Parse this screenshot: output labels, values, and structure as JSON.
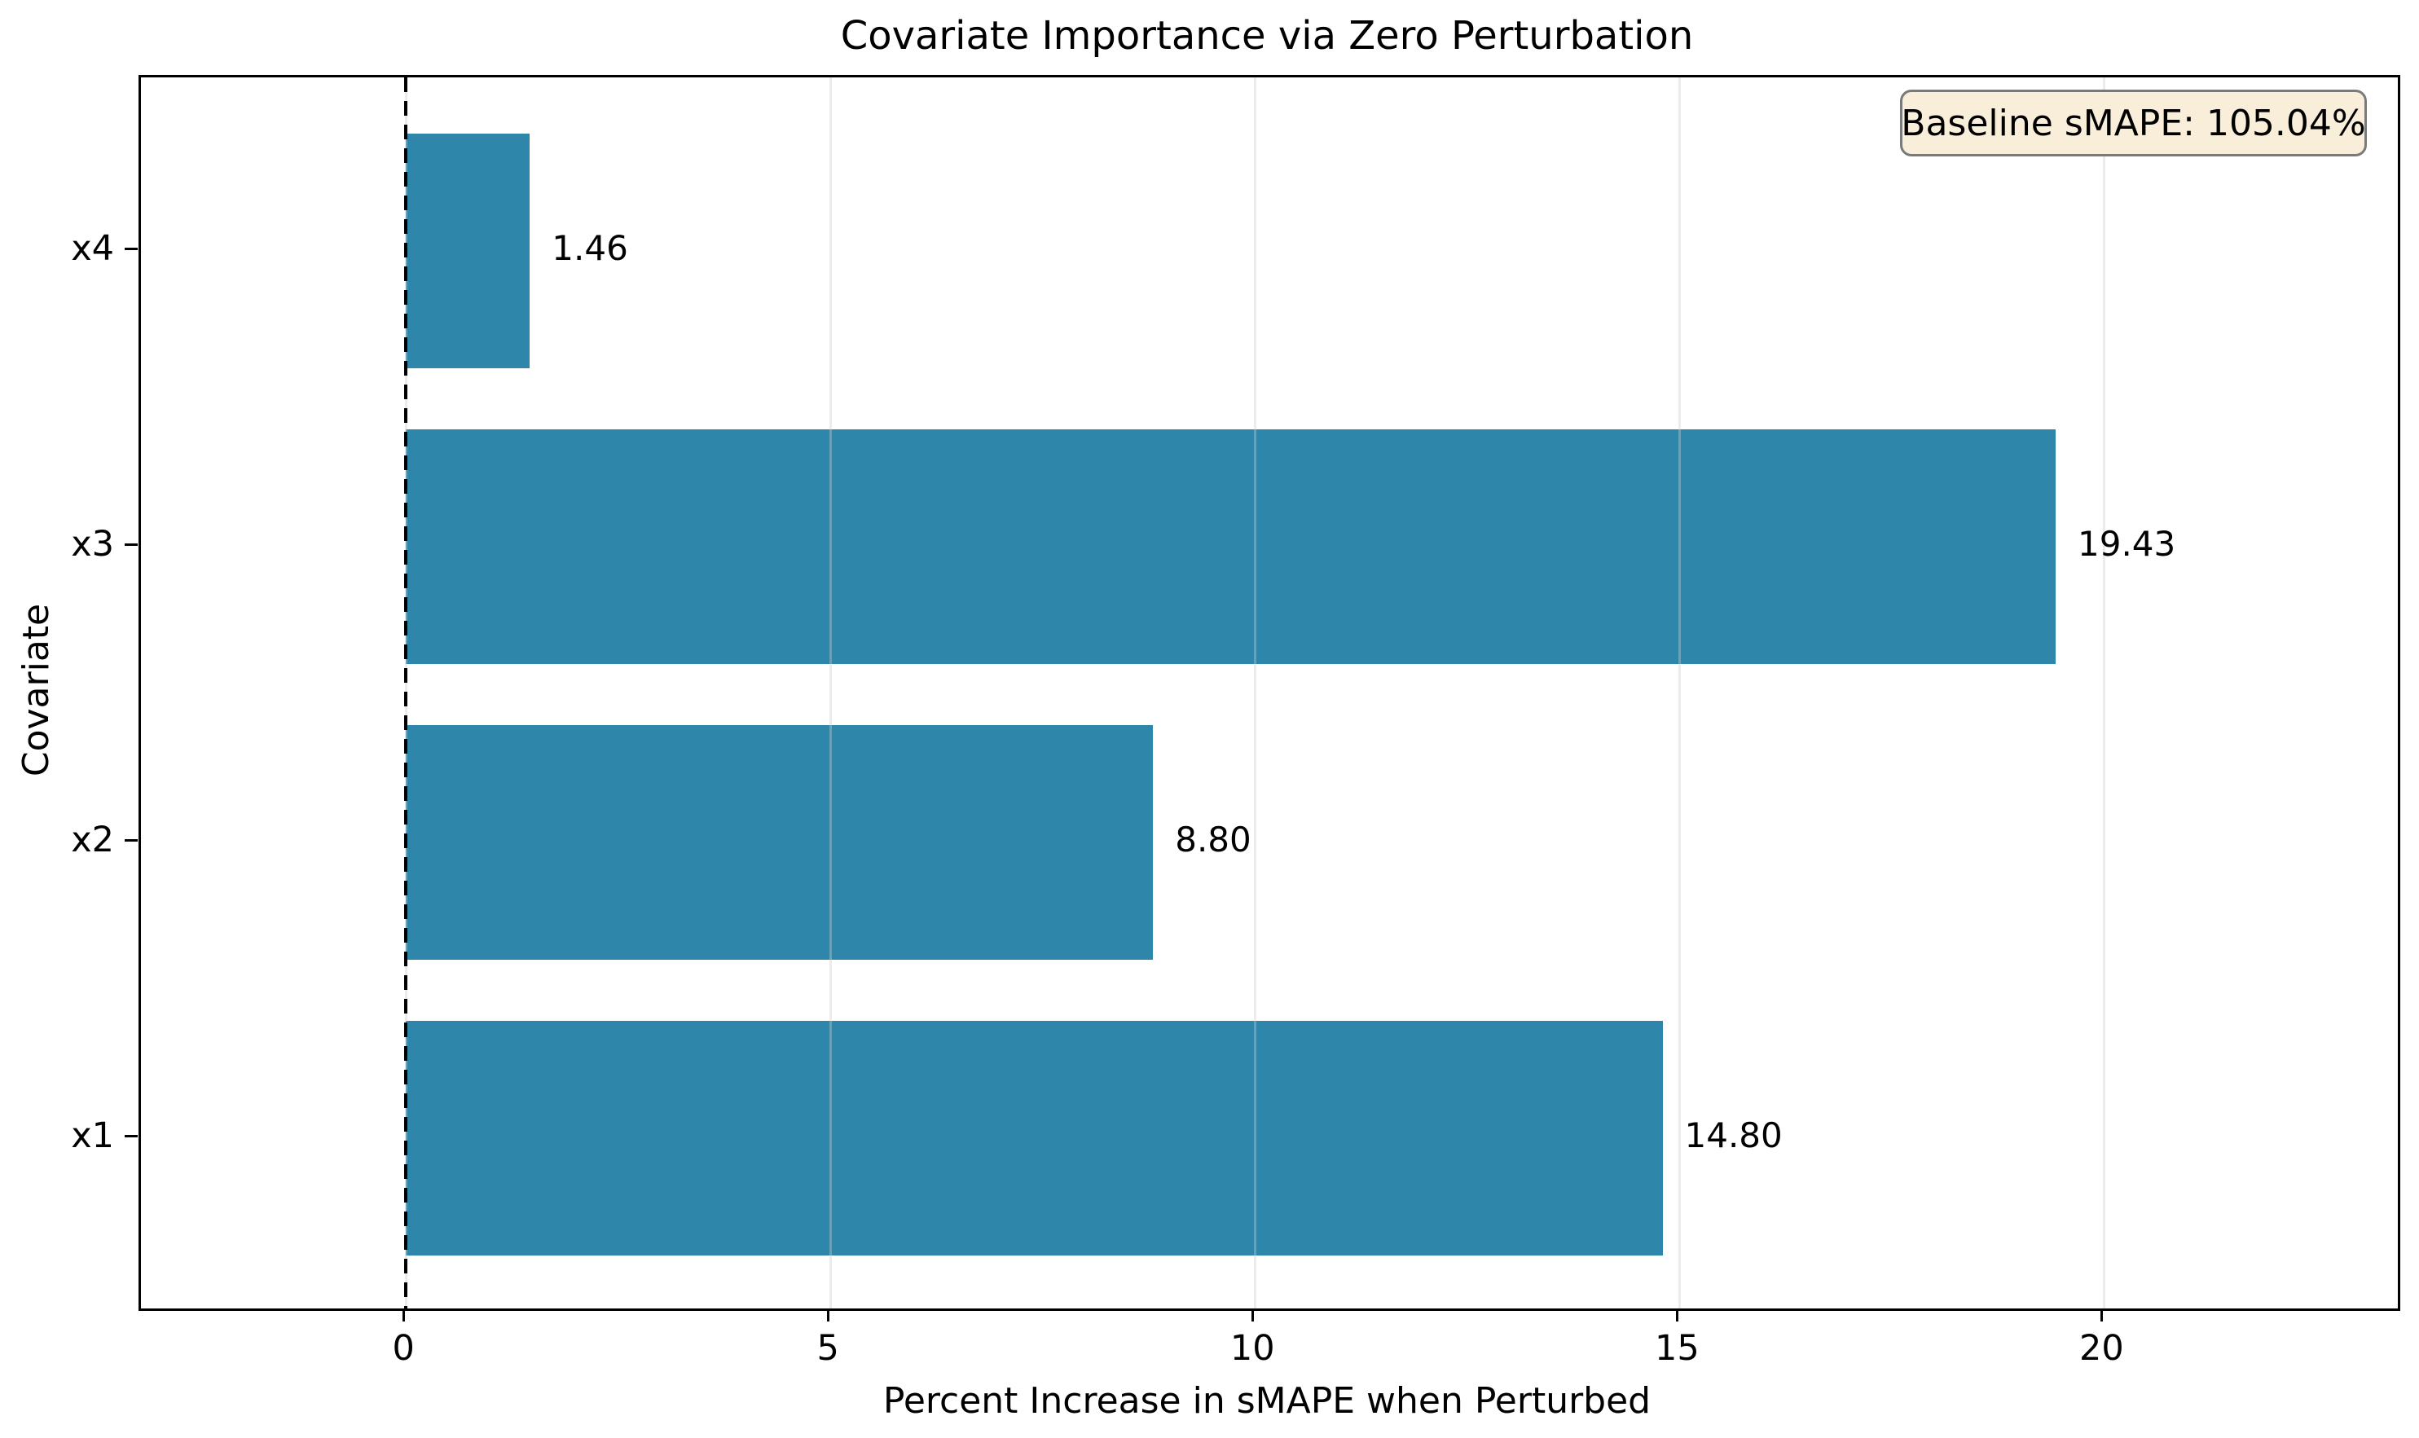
{
  "chart_data": {
    "type": "bar",
    "orientation": "horizontal",
    "title": "Covariate Importance via Zero Perturbation",
    "xlabel": "Percent Increase in sMAPE when Perturbed",
    "ylabel": "Covariate",
    "categories": [
      "x4",
      "x3",
      "x2",
      "x1"
    ],
    "values": [
      1.46,
      19.43,
      8.8,
      14.8
    ],
    "value_labels": [
      "1.46",
      "19.43",
      "8.80",
      "14.80"
    ],
    "xticks": [
      0,
      5,
      10,
      15,
      20
    ],
    "xlim": [
      -3.12,
      23.46
    ],
    "grid": "vertical",
    "reference_line_x": 0,
    "legend": "none",
    "annotation": {
      "label": "Baseline sMAPE: 105.04%",
      "position": "top-right"
    },
    "colors": {
      "bar": "#2E86AB",
      "annotation_background": "#F8EED9",
      "annotation_border": "#7A7A78",
      "spine": "#000000",
      "reference_line": "#000000"
    }
  }
}
